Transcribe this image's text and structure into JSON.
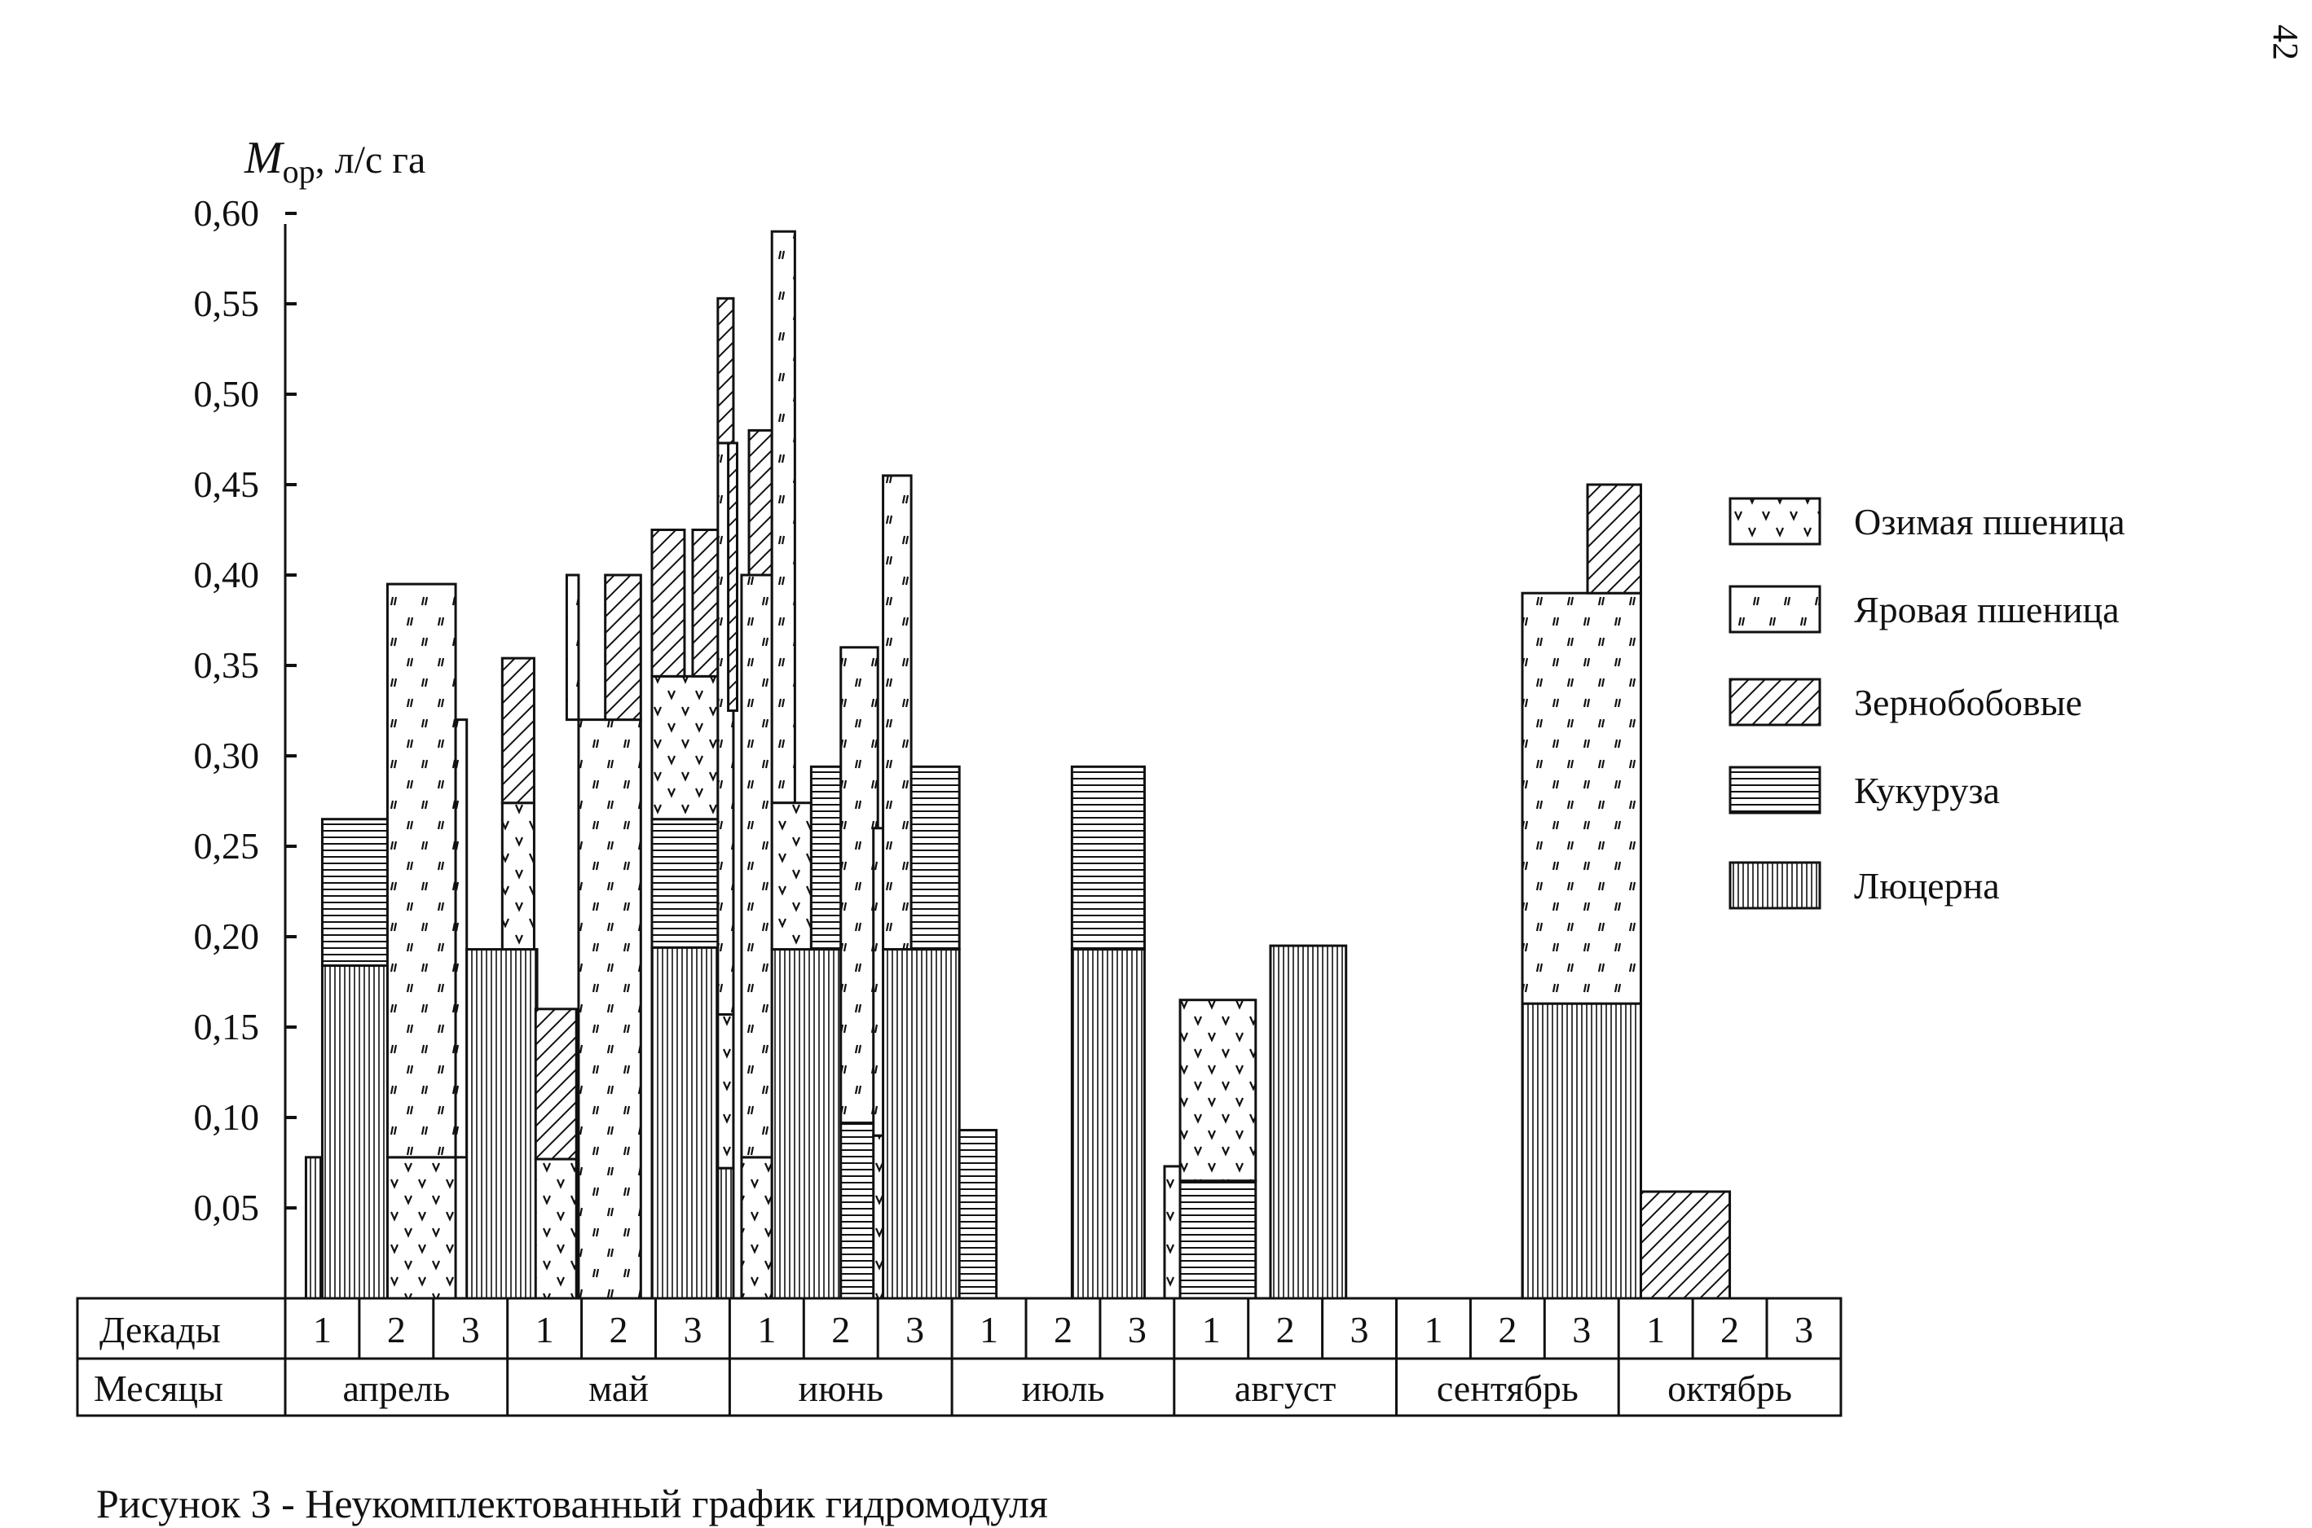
{
  "page_number": "42",
  "caption": "Рисунок 3  - Неукомплектованный график гидромодуля",
  "chart_data": {
    "type": "bar",
    "ylabel": {
      "symbol": "M",
      "subscript": "ор",
      "unit": ", л/с га"
    },
    "ylim": [
      0,
      0.6
    ],
    "y_ticks": [
      "0,05",
      "0,10",
      "0,15",
      "0,20",
      "0,25",
      "0,30",
      "0,35",
      "0,40",
      "0,45",
      "0,50",
      "0,55",
      "0,60"
    ],
    "row_labels": {
      "decades": "Декады",
      "months": "Месяцы"
    },
    "decade_labels": [
      "1",
      "2",
      "3",
      "1",
      "2",
      "3",
      "1",
      "2",
      "3",
      "1",
      "2",
      "3",
      "1",
      "2",
      "3",
      "1",
      "2",
      "3",
      "1",
      "2",
      "3"
    ],
    "months": [
      "апрель",
      "май",
      "июнь",
      "июль",
      "август",
      "сентябрь",
      "октябрь"
    ],
    "legend": [
      {
        "key": "winter_wheat",
        "label": "Озимая пшеница"
      },
      {
        "key": "spring_wheat",
        "label": "Яровая пшеница"
      },
      {
        "key": "legumes",
        "label": "Зернобобовые"
      },
      {
        "key": "corn",
        "label": "Кукуруза"
      },
      {
        "key": "alfalfa",
        "label": "Люцерна"
      }
    ],
    "bars": [
      {
        "from": 0.28,
        "to": 0.48,
        "y0": 0,
        "y1": 0.078,
        "crop": "alfalfa"
      },
      {
        "from": 0.5,
        "to": 1.38,
        "y0": 0,
        "y1": 0.184,
        "crop": "alfalfa"
      },
      {
        "from": 0.5,
        "to": 1.38,
        "y0": 0.184,
        "y1": 0.265,
        "crop": "corn"
      },
      {
        "from": 1.38,
        "to": 2.3,
        "y0": 0,
        "y1": 0.078,
        "crop": "winter_wheat"
      },
      {
        "from": 1.38,
        "to": 2.3,
        "y0": 0.078,
        "y1": 0.395,
        "crop": "spring_wheat"
      },
      {
        "from": 2.3,
        "to": 2.45,
        "y0": 0.078,
        "y1": 0.32,
        "crop": "spring_wheat"
      },
      {
        "from": 2.45,
        "to": 3.4,
        "y0": 0,
        "y1": 0.193,
        "crop": "alfalfa"
      },
      {
        "from": 2.93,
        "to": 3.36,
        "y0": 0.193,
        "y1": 0.274,
        "crop": "winter_wheat"
      },
      {
        "from": 2.93,
        "to": 3.36,
        "y0": 0.274,
        "y1": 0.354,
        "crop": "legumes"
      },
      {
        "from": 3.38,
        "to": 3.93,
        "y0": 0,
        "y1": 0.077,
        "crop": "winter_wheat"
      },
      {
        "from": 3.38,
        "to": 3.93,
        "y0": 0.077,
        "y1": 0.16,
        "crop": "legumes"
      },
      {
        "from": 3.8,
        "to": 3.96,
        "y0": 0.32,
        "y1": 0.4,
        "crop": "spring_wheat"
      },
      {
        "from": 3.96,
        "to": 4.8,
        "y0": 0,
        "y1": 0.32,
        "crop": "spring_wheat"
      },
      {
        "from": 4.32,
        "to": 4.8,
        "y0": 0.32,
        "y1": 0.4,
        "crop": "legumes"
      },
      {
        "from": 4.95,
        "to": 5.84,
        "y0": 0,
        "y1": 0.194,
        "crop": "alfalfa"
      },
      {
        "from": 4.95,
        "to": 5.84,
        "y0": 0.194,
        "y1": 0.265,
        "crop": "corn"
      },
      {
        "from": 4.95,
        "to": 5.84,
        "y0": 0.265,
        "y1": 0.344,
        "crop": "winter_wheat"
      },
      {
        "from": 4.95,
        "to": 5.39,
        "y0": 0.344,
        "y1": 0.425,
        "crop": "legumes"
      },
      {
        "from": 5.5,
        "to": 5.84,
        "y0": 0.344,
        "y1": 0.425,
        "crop": "legumes"
      },
      {
        "from": 5.84,
        "to": 6.05,
        "y0": 0,
        "y1": 0.072,
        "crop": "alfalfa"
      },
      {
        "from": 5.84,
        "to": 6.05,
        "y0": 0.072,
        "y1": 0.157,
        "crop": "winter_wheat"
      },
      {
        "from": 5.84,
        "to": 6.05,
        "y0": 0.157,
        "y1": 0.473,
        "crop": "spring_wheat"
      },
      {
        "from": 5.84,
        "to": 6.05,
        "y0": 0.473,
        "y1": 0.553,
        "crop": "legumes"
      },
      {
        "from": 5.98,
        "to": 6.1,
        "y0": 0.325,
        "y1": 0.473,
        "crop": "legumes"
      },
      {
        "from": 6.16,
        "to": 6.57,
        "y0": 0,
        "y1": 0.078,
        "crop": "winter_wheat"
      },
      {
        "from": 6.16,
        "to": 6.57,
        "y0": 0.078,
        "y1": 0.4,
        "crop": "spring_wheat"
      },
      {
        "from": 6.26,
        "to": 6.57,
        "y0": 0.4,
        "y1": 0.48,
        "crop": "legumes"
      },
      {
        "from": 6.57,
        "to": 6.88,
        "y0": 0.274,
        "y1": 0.59,
        "crop": "spring_wheat"
      },
      {
        "from": 6.57,
        "to": 7.5,
        "y0": 0,
        "y1": 0.193,
        "crop": "alfalfa"
      },
      {
        "from": 6.57,
        "to": 7.1,
        "y0": 0.193,
        "y1": 0.274,
        "crop": "winter_wheat"
      },
      {
        "from": 7.1,
        "to": 7.5,
        "y0": 0.193,
        "y1": 0.294,
        "crop": "corn"
      },
      {
        "from": 7.5,
        "to": 8.0,
        "y0": 0.097,
        "y1": 0.36,
        "crop": "spring_wheat"
      },
      {
        "from": 7.5,
        "to": 8.0,
        "y0": 0,
        "y1": 0.097,
        "crop": "corn"
      },
      {
        "from": 7.94,
        "to": 8.1,
        "y0": 0,
        "y1": 0.09,
        "crop": "winter_wheat"
      },
      {
        "from": 7.94,
        "to": 8.1,
        "y0": 0.09,
        "y1": 0.26,
        "crop": "spring_wheat"
      },
      {
        "from": 8.07,
        "to": 8.45,
        "y0": 0.193,
        "y1": 0.455,
        "crop": "spring_wheat"
      },
      {
        "from": 8.07,
        "to": 9.1,
        "y0": 0,
        "y1": 0.193,
        "crop": "alfalfa"
      },
      {
        "from": 8.45,
        "to": 9.1,
        "y0": 0.193,
        "y1": 0.294,
        "crop": "corn"
      },
      {
        "from": 9.1,
        "to": 9.6,
        "y0": 0,
        "y1": 0.093,
        "crop": "corn"
      },
      {
        "from": 10.62,
        "to": 11.6,
        "y0": 0,
        "y1": 0.193,
        "crop": "alfalfa"
      },
      {
        "from": 10.62,
        "to": 11.6,
        "y0": 0.193,
        "y1": 0.294,
        "crop": "corn"
      },
      {
        "from": 11.87,
        "to": 12.08,
        "y0": 0,
        "y1": 0.073,
        "crop": "winter_wheat"
      },
      {
        "from": 12.08,
        "to": 13.1,
        "y0": 0,
        "y1": 0.065,
        "crop": "corn"
      },
      {
        "from": 12.08,
        "to": 13.1,
        "y0": 0.065,
        "y1": 0.165,
        "crop": "winter_wheat"
      },
      {
        "from": 13.3,
        "to": 14.32,
        "y0": 0,
        "y1": 0.195,
        "crop": "alfalfa"
      },
      {
        "from": 16.7,
        "to": 18.3,
        "y0": 0,
        "y1": 0.163,
        "crop": "alfalfa"
      },
      {
        "from": 16.7,
        "to": 18.3,
        "y0": 0.163,
        "y1": 0.39,
        "crop": "spring_wheat"
      },
      {
        "from": 17.58,
        "to": 18.3,
        "y0": 0.39,
        "y1": 0.45,
        "crop": "legumes"
      },
      {
        "from": 18.3,
        "to": 19.5,
        "y0": 0,
        "y1": 0.059,
        "crop": "legumes"
      }
    ]
  }
}
